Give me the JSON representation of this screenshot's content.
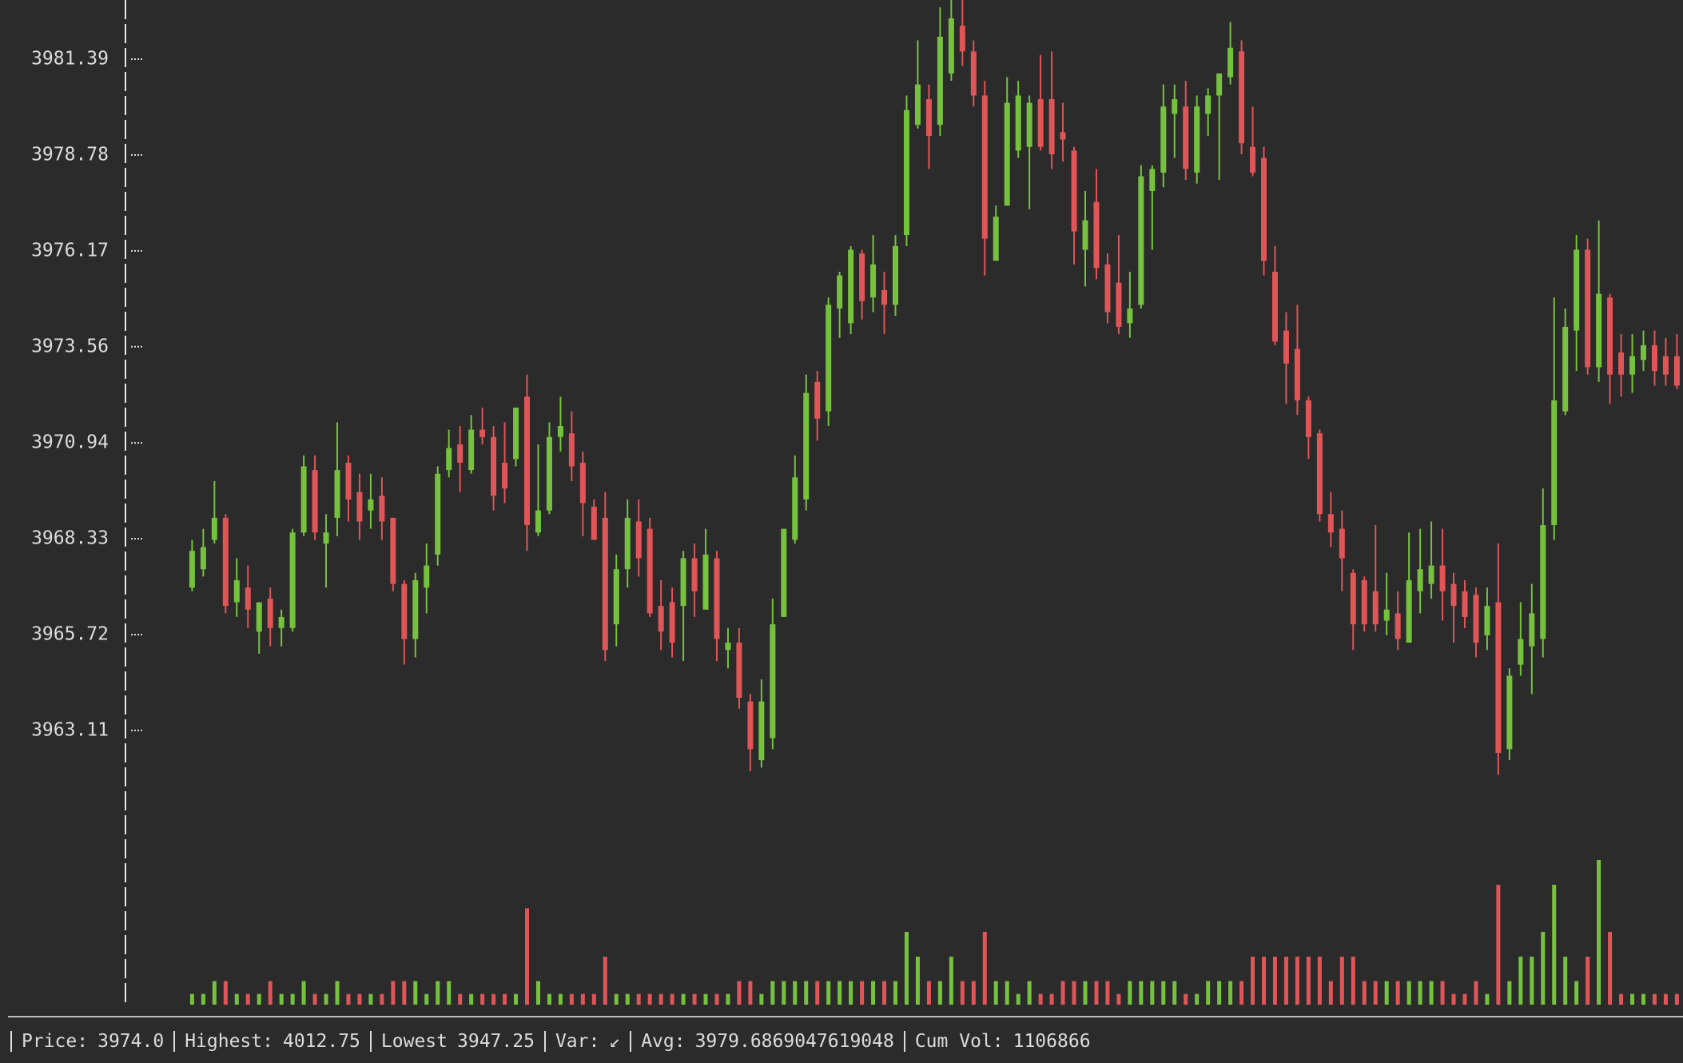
{
  "chart_data": {
    "type": "candlestick",
    "ylim": [
      3959.8,
      3983.0
    ],
    "yticks": [
      3963.11,
      3965.72,
      3968.33,
      3970.94,
      3973.56,
      3976.17,
      3978.78,
      3981.39
    ],
    "up_color": "#76c23f",
    "down_color": "#e05557",
    "open": [
      3967.0,
      3967.5,
      3968.3,
      3968.9,
      3966.6,
      3967.0,
      3965.8,
      3966.7,
      3965.9,
      3965.9,
      3968.5,
      3970.2,
      3968.2,
      3968.9,
      3970.4,
      3969.6,
      3969.1,
      3969.5,
      3968.9,
      3967.1,
      3965.6,
      3967.0,
      3967.9,
      3970.2,
      3970.9,
      3970.2,
      3971.3,
      3971.1,
      3970.4,
      3970.5,
      3972.2,
      3968.5,
      3969.1,
      3971.1,
      3971.2,
      3970.4,
      3969.2,
      3968.9,
      3966.0,
      3967.5,
      3968.8,
      3968.6,
      3966.5,
      3966.6,
      3966.5,
      3967.8,
      3966.4,
      3967.8,
      3965.3,
      3965.5,
      3963.9,
      3962.3,
      3962.9,
      3966.2,
      3968.3,
      3969.4,
      3972.6,
      3971.8,
      3974.6,
      3974.2,
      3976.1,
      3974.9,
      3975.1,
      3974.7,
      3976.6,
      3979.6,
      3980.3,
      3979.6,
      3981.0,
      3982.3,
      3981.6,
      3980.4,
      3975.9,
      3977.4,
      3978.9,
      3979.0,
      3980.3,
      3980.3,
      3979.4,
      3978.9,
      3976.2,
      3977.5,
      3975.8,
      3975.3,
      3974.2,
      3974.7,
      3977.8,
      3978.3,
      3979.9,
      3980.1,
      3978.3,
      3979.9,
      3980.4,
      3980.9,
      3981.6,
      3979.0,
      3978.7,
      3975.6,
      3974.0,
      3973.5,
      3972.1,
      3971.2,
      3969.0,
      3968.6,
      3967.4,
      3967.2,
      3966.9,
      3966.1,
      3966.3,
      3965.5,
      3966.9,
      3967.1,
      3967.6,
      3967.1,
      3966.9,
      3966.8,
      3965.7,
      3966.6,
      3962.6,
      3964.9,
      3965.4,
      3965.6,
      3968.7,
      3971.8,
      3974.0,
      3976.2,
      3973.0,
      3974.9,
      3973.4,
      3972.8,
      3973.2,
      3973.6,
      3973.3,
      3973.3
    ],
    "high": [
      3968.3,
      3968.6,
      3969.9,
      3969.0,
      3967.8,
      3967.6,
      3966.6,
      3967.0,
      3966.4,
      3968.6,
      3970.6,
      3970.6,
      3969.0,
      3971.5,
      3970.6,
      3970.1,
      3970.1,
      3970.0,
      3968.9,
      3967.2,
      3967.4,
      3968.2,
      3970.3,
      3971.3,
      3971.4,
      3971.7,
      3971.9,
      3971.4,
      3971.5,
      3971.9,
      3972.8,
      3970.9,
      3971.5,
      3972.2,
      3971.8,
      3970.7,
      3969.4,
      3969.6,
      3967.9,
      3969.4,
      3969.4,
      3968.9,
      3967.2,
      3967.0,
      3968.0,
      3968.2,
      3968.6,
      3968.0,
      3965.9,
      3965.9,
      3964.1,
      3964.5,
      3966.7,
      3968.6,
      3970.6,
      3972.8,
      3972.9,
      3974.9,
      3975.6,
      3976.3,
      3976.2,
      3976.6,
      3975.6,
      3976.6,
      3980.4,
      3981.9,
      3980.7,
      3982.8,
      3983.0,
      3983.0,
      3981.9,
      3980.8,
      3977.4,
      3980.9,
      3980.8,
      3980.4,
      3981.5,
      3981.6,
      3980.2,
      3979.0,
      3977.8,
      3978.4,
      3976.1,
      3976.6,
      3975.6,
      3978.5,
      3978.5,
      3980.7,
      3980.7,
      3980.8,
      3980.4,
      3980.6,
      3981.0,
      3982.4,
      3981.9,
      3980.1,
      3979.0,
      3976.3,
      3974.5,
      3974.7,
      3972.2,
      3971.3,
      3969.6,
      3969.1,
      3967.5,
      3967.3,
      3968.7,
      3967.4,
      3966.9,
      3968.5,
      3968.6,
      3968.8,
      3968.6,
      3967.4,
      3967.2,
      3967.0,
      3967.0,
      3968.2,
      3964.8,
      3966.6,
      3967.1,
      3969.7,
      3974.9,
      3974.6,
      3976.6,
      3976.5,
      3977.0,
      3975.0,
      3973.9,
      3973.9,
      3974.0,
      3974.0,
      3973.8,
      3973.9
    ],
    "low": [
      3966.9,
      3967.3,
      3968.2,
      3966.3,
      3966.2,
      3965.9,
      3965.2,
      3965.4,
      3965.4,
      3965.8,
      3968.4,
      3968.3,
      3967.0,
      3968.4,
      3968.8,
      3968.3,
      3968.6,
      3968.3,
      3966.9,
      3964.9,
      3965.1,
      3966.3,
      3967.6,
      3970.0,
      3969.6,
      3970.1,
      3970.9,
      3969.1,
      3969.3,
      3970.3,
      3968.0,
      3968.4,
      3969.0,
      3970.7,
      3969.9,
      3968.4,
      3968.3,
      3965.0,
      3965.4,
      3967.0,
      3967.3,
      3966.2,
      3965.3,
      3965.1,
      3965.0,
      3966.2,
      3966.4,
      3965.0,
      3964.8,
      3963.7,
      3962.0,
      3962.1,
      3962.6,
      3966.2,
      3968.2,
      3969.1,
      3971.0,
      3971.4,
      3973.8,
      3973.9,
      3974.3,
      3974.5,
      3973.9,
      3974.4,
      3976.3,
      3979.5,
      3978.4,
      3979.3,
      3980.8,
      3981.2,
      3980.1,
      3975.5,
      3975.9,
      3977.4,
      3978.7,
      3977.3,
      3978.9,
      3978.4,
      3978.6,
      3975.8,
      3975.2,
      3975.4,
      3974.2,
      3973.9,
      3973.8,
      3974.6,
      3976.2,
      3977.9,
      3978.7,
      3978.1,
      3978.0,
      3979.3,
      3978.1,
      3980.7,
      3978.8,
      3978.2,
      3975.5,
      3973.6,
      3972.0,
      3971.7,
      3970.5,
      3968.8,
      3968.1,
      3966.9,
      3965.3,
      3965.8,
      3965.8,
      3965.7,
      3965.3,
      3965.5,
      3966.3,
      3966.7,
      3966.1,
      3965.5,
      3965.9,
      3965.1,
      3965.3,
      3961.9,
      3962.3,
      3964.6,
      3964.1,
      3965.1,
      3968.3,
      3971.7,
      3972.9,
      3972.8,
      3972.6,
      3972.0,
      3972.2,
      3972.3,
      3972.9,
      3972.5,
      3972.5,
      3972.4
    ],
    "close": [
      3968.0,
      3968.1,
      3968.9,
      3966.5,
      3967.2,
      3966.4,
      3966.6,
      3965.9,
      3966.2,
      3968.5,
      3970.3,
      3968.5,
      3968.5,
      3970.2,
      3969.4,
      3968.8,
      3969.4,
      3968.8,
      3967.1,
      3965.6,
      3967.2,
      3967.6,
      3970.1,
      3970.8,
      3970.4,
      3971.3,
      3971.1,
      3969.5,
      3969.7,
      3971.9,
      3968.7,
      3969.1,
      3971.1,
      3971.4,
      3970.3,
      3969.3,
      3968.3,
      3965.3,
      3967.5,
      3968.9,
      3967.8,
      3966.3,
      3965.8,
      3965.5,
      3967.8,
      3966.9,
      3967.9,
      3965.6,
      3965.5,
      3964.0,
      3962.6,
      3963.9,
      3966.0,
      3968.6,
      3970.0,
      3972.3,
      3971.6,
      3974.7,
      3975.5,
      3976.2,
      3974.8,
      3975.8,
      3974.7,
      3976.3,
      3980.0,
      3980.7,
      3979.3,
      3982.0,
      3982.5,
      3981.6,
      3980.4,
      3976.5,
      3977.1,
      3980.2,
      3980.4,
      3980.2,
      3979.0,
      3978.8,
      3979.2,
      3976.7,
      3977.0,
      3975.7,
      3974.5,
      3974.1,
      3974.6,
      3978.2,
      3978.4,
      3980.1,
      3980.3,
      3978.4,
      3980.1,
      3980.4,
      3981.0,
      3981.7,
      3979.1,
      3978.3,
      3975.9,
      3973.7,
      3973.1,
      3972.1,
      3971.1,
      3969.0,
      3968.5,
      3967.8,
      3966.0,
      3966.0,
      3966.0,
      3966.4,
      3965.6,
      3967.2,
      3967.5,
      3967.6,
      3966.9,
      3966.5,
      3966.2,
      3965.5,
      3966.5,
      3962.5,
      3964.6,
      3965.6,
      3966.3,
      3968.7,
      3972.1,
      3974.1,
      3976.2,
      3973.0,
      3975.0,
      3972.8,
      3972.8,
      3973.3,
      3973.6,
      3972.9,
      3972.8,
      3972.5
    ],
    "volume": [
      3500,
      3500,
      7700,
      7700,
      3500,
      3500,
      3500,
      7700,
      3500,
      3500,
      7700,
      3500,
      3500,
      7700,
      3500,
      3500,
      3500,
      3500,
      7700,
      7700,
      7700,
      3500,
      7700,
      7700,
      3500,
      3500,
      3500,
      3500,
      3500,
      3500,
      31500,
      7700,
      3500,
      3500,
      3500,
      3500,
      3500,
      15700,
      3500,
      3500,
      3500,
      3500,
      3500,
      3500,
      3500,
      3500,
      3500,
      3500,
      3500,
      7700,
      7700,
      3500,
      7700,
      7700,
      7700,
      7700,
      7700,
      7700,
      7700,
      7700,
      7700,
      7700,
      7700,
      7700,
      23800,
      15700,
      7700,
      7700,
      15700,
      7700,
      7700,
      23800,
      7700,
      7700,
      3500,
      7700,
      3500,
      3500,
      7700,
      7700,
      7700,
      7700,
      7700,
      3500,
      7700,
      7700,
      7700,
      7700,
      7700,
      3500,
      3500,
      7700,
      7700,
      7700,
      7700,
      15700,
      15700,
      15700,
      15700,
      15700,
      15700,
      15700,
      7700,
      15700,
      15700,
      7700,
      7700,
      7700,
      7700,
      7700,
      7700,
      7700,
      7700,
      3500,
      3500,
      7700,
      3500,
      39200,
      7700,
      15700,
      15700,
      23800,
      39200,
      15700,
      7700,
      15700,
      47300,
      23800,
      3500,
      3500,
      3500,
      3500,
      3500,
      3500
    ]
  },
  "status": [
    {
      "label": "Price:",
      "value": "3974.0"
    },
    {
      "label": "Highest:",
      "value": "4012.75"
    },
    {
      "label": "Lowest",
      "value": "3947.25"
    },
    {
      "label": "Var:",
      "value": "↙"
    },
    {
      "label": "Avg:",
      "value": "3979.6869047619048"
    },
    {
      "label": "Cum Vol:",
      "value": "1106866"
    }
  ]
}
